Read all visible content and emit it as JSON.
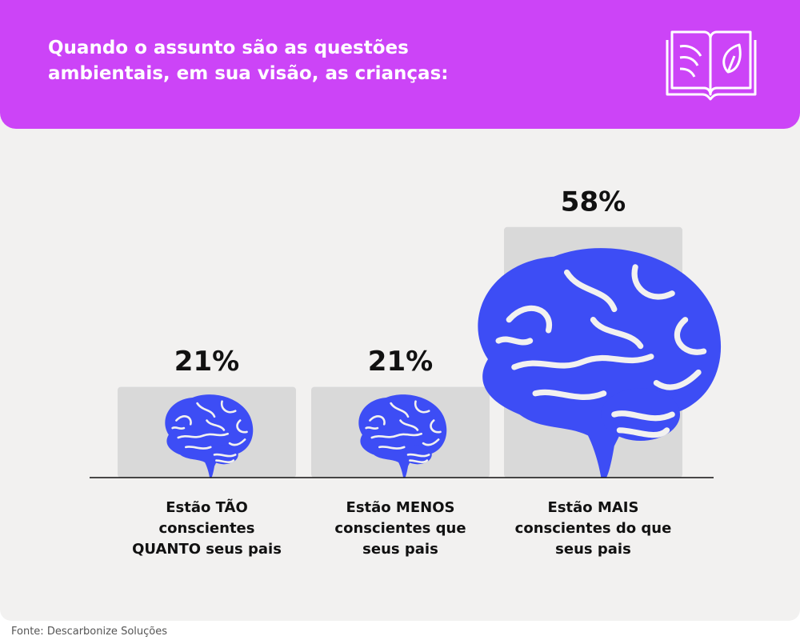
{
  "chart_data": {
    "type": "bar",
    "title": "Quando o assunto são as questões ambientais, em sua visão, as crianças:",
    "categories": [
      "Estão TÃO conscientes QUANTO seus pais",
      "Estão MENOS conscientes que seus pais",
      "Estão MAIS conscientes do que seus pais"
    ],
    "values": [
      21,
      21,
      58
    ],
    "value_labels": [
      "21%",
      "21%",
      "58%"
    ],
    "color": "#d9d9d9",
    "icon_color": "#3d4df5",
    "source": "Fonte: Descarbonize Soluções"
  }
}
